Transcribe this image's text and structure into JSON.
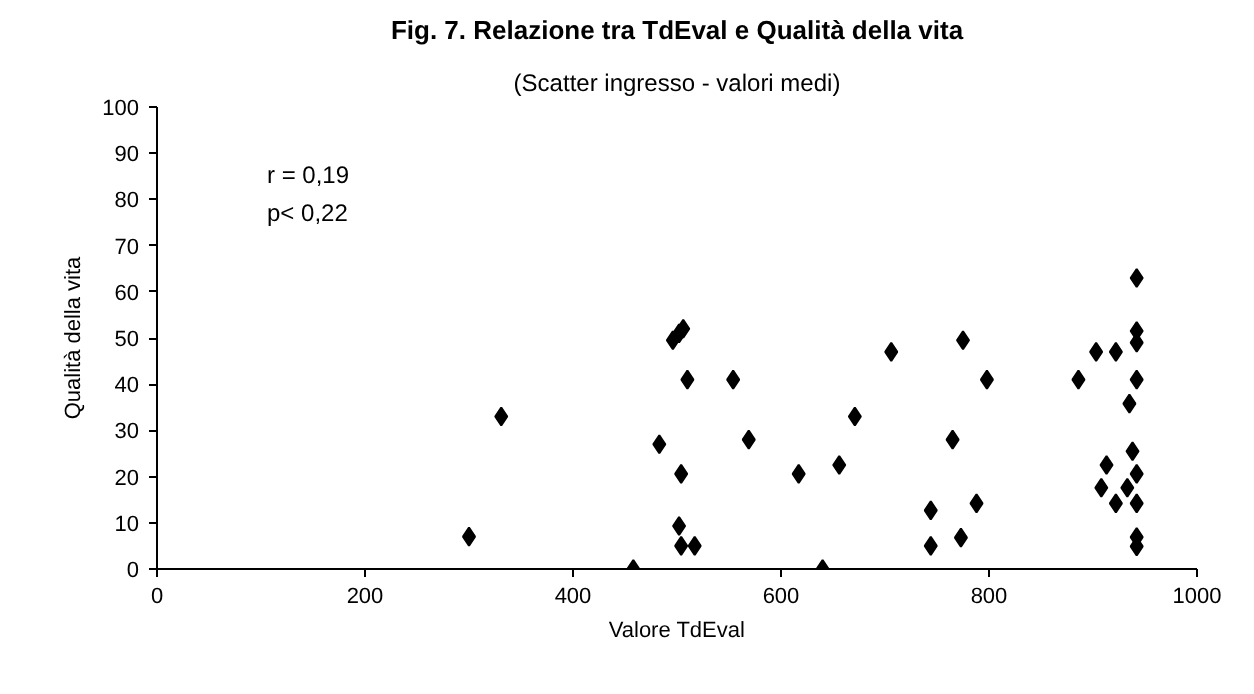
{
  "chart_data": {
    "type": "scatter",
    "title": "Fig. 7. Relazione tra TdEval e Qualità della vita",
    "subtitle": "(Scatter ingresso - valori medi)",
    "xlabel": "Valore TdEval",
    "ylabel": "Qualità della vita",
    "annotations": [
      "r = 0,19",
      "p< 0,22"
    ],
    "x": [
      300,
      331,
      458,
      483,
      496,
      502,
      506,
      510,
      504,
      502,
      504,
      517,
      554,
      569,
      617,
      640,
      656,
      671,
      942,
      706,
      775,
      798,
      765,
      744,
      744,
      773,
      788,
      886,
      903,
      922,
      942,
      942,
      942,
      935,
      938,
      942,
      913,
      908,
      933,
      922,
      942,
      942,
      942
    ],
    "series": [
      {
        "color": "#000000",
        "values": [
          7,
          33,
          0,
          27,
          49.5,
          51,
          52,
          41,
          20.6,
          9.3,
          5,
          5,
          41,
          28,
          20.6,
          0,
          22.5,
          33,
          63,
          47,
          49.5,
          41,
          28,
          12.7,
          5,
          6.8,
          14.2,
          41,
          47,
          47,
          51.5,
          49,
          41,
          35.8,
          25.5,
          20.6,
          22.5,
          17.6,
          17.6,
          14.2,
          14.2,
          6.9,
          4.9
        ]
      }
    ],
    "xlim": [
      0,
      1000
    ],
    "xticks": [
      0,
      200,
      400,
      600,
      800,
      1000
    ],
    "ylim": [
      0,
      100
    ],
    "yticks": [
      0,
      10,
      20,
      30,
      40,
      50,
      60,
      70,
      80,
      90,
      100
    ],
    "grid": false,
    "marker": "diamond"
  }
}
